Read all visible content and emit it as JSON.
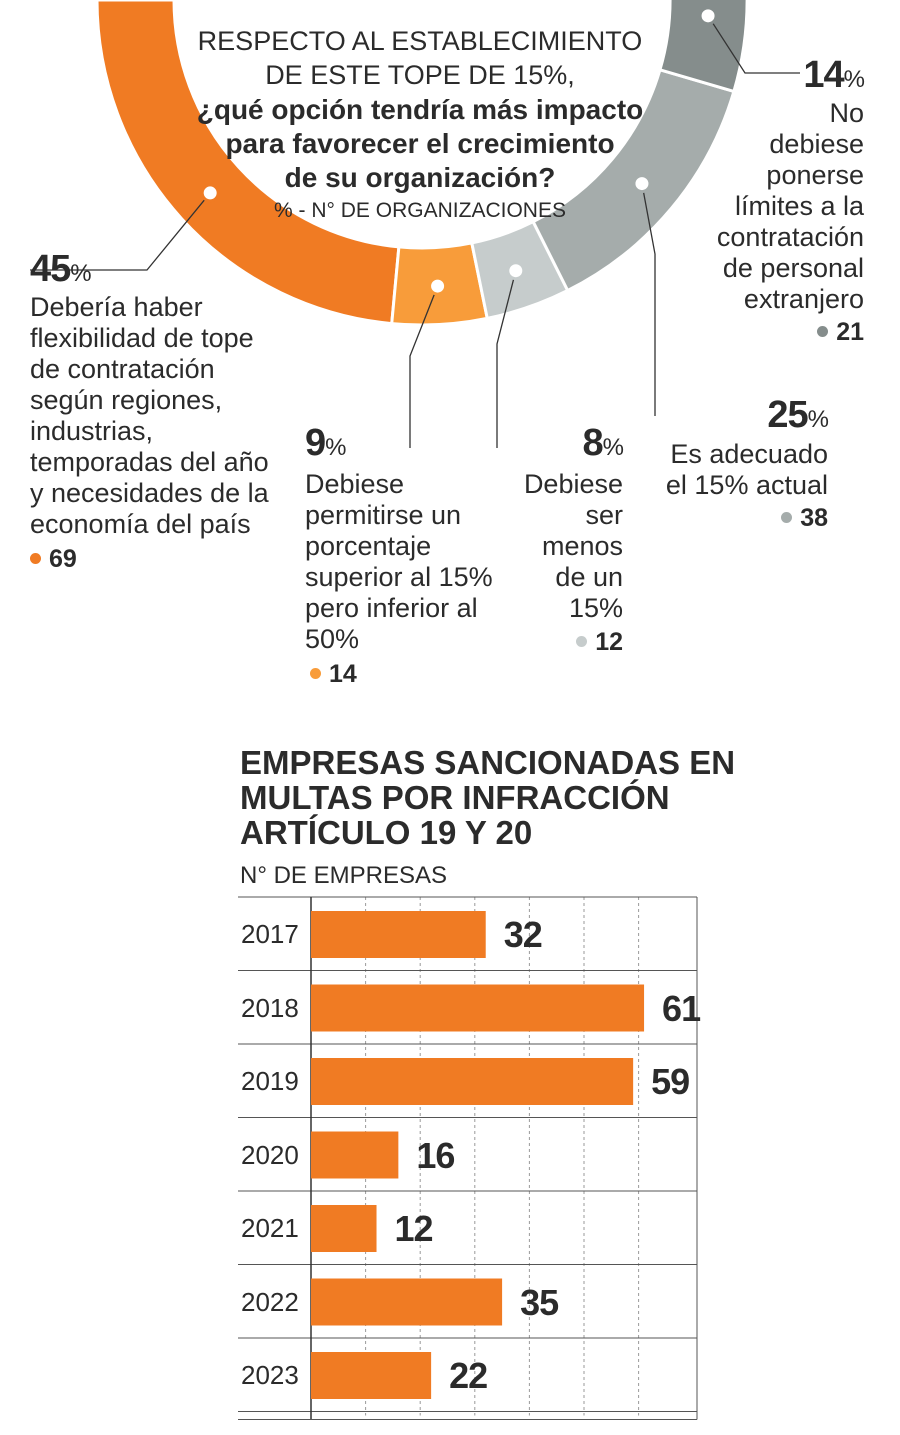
{
  "donut": {
    "question_line1": "RESPECTO AL ESTABLECIMIENTO",
    "question_line2": "DE ESTE TOPE DE 15%,",
    "question_line3": "¿qué opción tendría más impacto",
    "question_line4": "para favorecer el crecimiento",
    "question_line5": "de su organización?",
    "unit": "% - N° DE ORGANIZACIONES"
  },
  "bars": {
    "title_line1": "EMPRESAS SANCIONADAS EN",
    "title_line2": "MULTAS POR INFRACCIÓN",
    "title_line3": "ARTÍCULO 19 Y 20",
    "subtitle": "N° DE EMPRESAS"
  },
  "chart_data": [
    {
      "type": "pie",
      "title": "RESPECTO AL ESTABLECIMIENTO DE ESTE TOPE DE 15%, ¿qué opción tendría más impacto para favorecer el crecimiento de su organización?",
      "unit": "% - N° DE ORGANIZACIONES",
      "slices": [
        {
          "pct": 45,
          "pct_label": "45",
          "count": "69",
          "color": "#f07b23",
          "label": [
            "Debería haber",
            "flexibilidad de tope",
            "de contratación",
            "según regiones,",
            "industrias,",
            "temporadas del año",
            "y necesidades de la",
            "economía del país"
          ]
        },
        {
          "pct": 9,
          "pct_label": "9",
          "count": "14",
          "color": "#f89c3a",
          "label": [
            "Debiese",
            "permitirse un",
            "porcentaje",
            "superior al 15%",
            "pero inferior al",
            "50%"
          ]
        },
        {
          "pct": 8,
          "pct_label": "8",
          "count": "12",
          "color": "#c6cccc",
          "label": [
            "Debiese",
            "ser",
            "menos",
            "de un",
            "15%"
          ]
        },
        {
          "pct": 25,
          "pct_label": "25",
          "count": "38",
          "color": "#a5acab",
          "label": [
            "Es adecuado",
            "el 15% actual"
          ]
        },
        {
          "pct": 14,
          "pct_label": "14",
          "count": "21",
          "color": "#858d8c",
          "label": [
            "No",
            "debiese",
            "ponerse",
            "límites a la",
            "contratación",
            "de personal",
            "extranjero"
          ]
        }
      ]
    },
    {
      "type": "bar",
      "orientation": "horizontal",
      "title": "EMPRESAS SANCIONADAS EN MULTAS POR INFRACCIÓN ARTÍCULO 19 Y 20",
      "ylabel": "N° DE EMPRESAS",
      "categories": [
        "2017",
        "2018",
        "2019",
        "2020",
        "2021",
        "2022",
        "2023"
      ],
      "values": [
        32,
        61,
        59,
        16,
        12,
        35,
        22
      ],
      "xlim": [
        0,
        70
      ],
      "grid": true,
      "bar_color": "#f07b23"
    }
  ]
}
